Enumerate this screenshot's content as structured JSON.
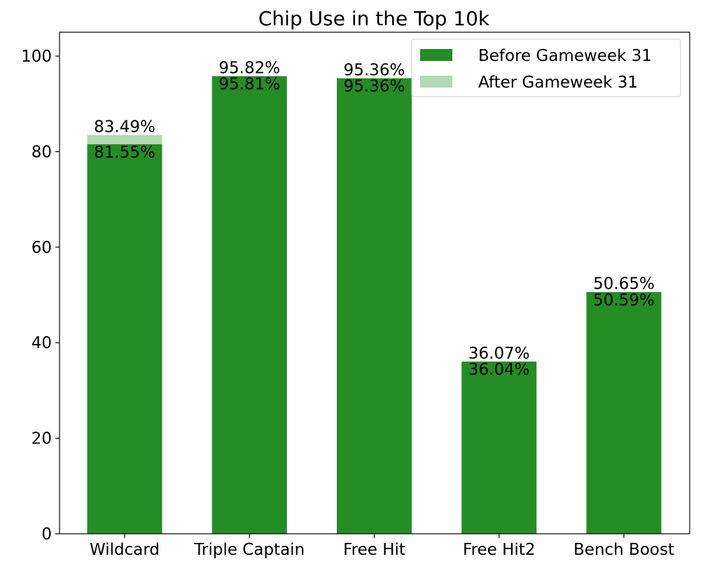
{
  "chart_data": {
    "type": "bar",
    "title": "Chip Use in the Top 10k",
    "xlabel": "",
    "ylabel": "",
    "ylim": [
      0,
      105
    ],
    "yticks": [
      0,
      20,
      40,
      60,
      80,
      100
    ],
    "categories": [
      "Wildcard",
      "Triple Captain",
      "Free Hit",
      "Free Hit2",
      "Bench Boost"
    ],
    "series": [
      {
        "name": "Before Gameweek 31",
        "values": [
          81.55,
          95.81,
          95.36,
          36.04,
          50.59
        ],
        "labels": [
          "81.55%",
          "95.81%",
          "95.36%",
          "36.04%",
          "50.59%"
        ],
        "color": "#268c26"
      },
      {
        "name": "After Gameweek 31",
        "values": [
          83.49,
          95.82,
          95.36,
          36.07,
          50.65
        ],
        "labels": [
          "83.49%",
          "95.82%",
          "95.36%",
          "36.07%",
          "50.65%"
        ],
        "color": "#b3dab3"
      }
    ],
    "legend_position": "top-right",
    "grid": false
  }
}
